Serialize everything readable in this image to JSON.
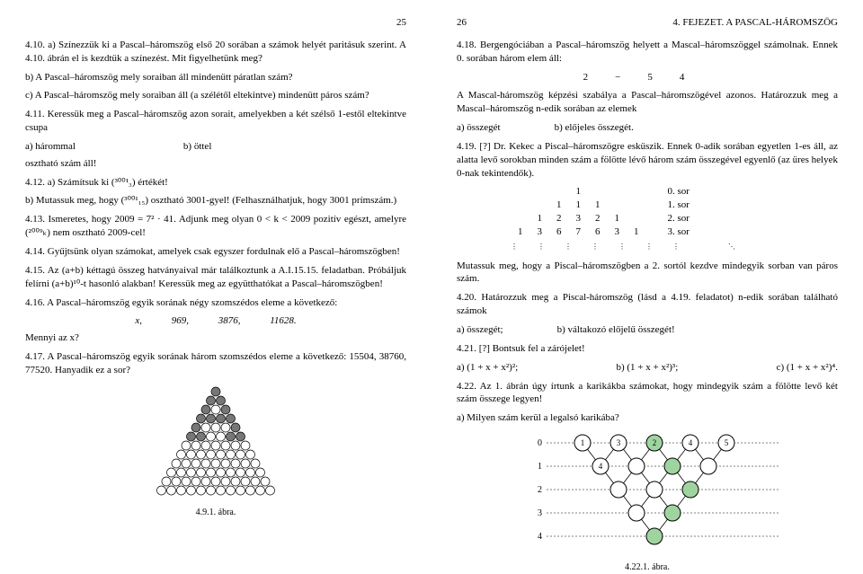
{
  "left": {
    "pageNumber": "25",
    "p410a": "4.10.  a) Színezzük ki a Pascal–háromszög első 20 sorában a számok helyét paritásuk szerint. A 4.10. ábrán el is kezdtük a színezést. Mit figyelhetünk meg?",
    "p410b": "b) A Pascal–háromszög mely soraiban áll mindenütt páratlan szám?",
    "p410c": "c) A Pascal–háromszög mely soraiban áll (a szélétől eltekintve) mindenütt páros szám?",
    "p411": "4.11.  Keressük meg a Pascal–háromszög azon sorait, amelyekben a két szélső 1-estől eltekintve csupa",
    "p411a": "a) hárommal",
    "p411b": "b) öttel",
    "p411tail": "osztható szám áll!",
    "p412a": "4.12.  a) Számítsuk ki (³⁰⁰¹₃) értékét!",
    "p412b": "b) Mutassuk meg, hogy (³⁰⁰¹₁₅) osztható 3001-gyel! (Felhasználhatjuk, hogy 3001 prímszám.)",
    "p413": "4.13.  Ismeretes, hogy 2009 = 7² · 41. Adjunk meg olyan 0 < k < 2009 pozitív egészt, amelyre (²⁰⁰⁹ₖ) nem osztható 2009-cel!",
    "p414": "4.14.  Gyűjtsünk olyan számokat, amelyek csak egyszer fordulnak elő a Pascal–háromszögben!",
    "p415": "4.15.  Az (a+b) kéttagú összeg hatványaival már találkoztunk a A.I.15.15. feladatban. Próbáljuk felírni (a+b)¹⁰-t hasonló alakban! Keressük meg az együtthatókat a Pascal–háromszögben!",
    "p416": "4.16.  A Pascal–háromszög egyik sorának négy szomszédos eleme a következő:",
    "p416nums": [
      "x,",
      "969,",
      "3876,",
      "11628."
    ],
    "p416q": "Mennyi az x?",
    "p417": "4.17.  A Pascal–háromszög egyik sorának három szomszédos eleme a következő: 15504, 38760, 77520. Hanyadik ez a sor?",
    "figcap": "4.9.1. ábra."
  },
  "right": {
    "pageNumber": "26",
    "chapter": "4. FEJEZET.  A PASCAL-HÁROMSZÖG",
    "p418a": "4.18.  Bergengóciában a Pascal–háromszög helyett a Mascal–háromszöggel számolnak. Ennek 0. sorában három elem áll:",
    "mascalnums": [
      "2",
      "−5",
      "4"
    ],
    "p418b": "A Mascal-háromszög képzési szabálya a Pascal–háromszögével azonos. Határozzuk meg a Mascal–háromszög n-edik sorában az elemek",
    "p418aa": "a) összegét",
    "p418bb": "b) előjeles összegét.",
    "p419": "4.19. [?]  Dr. Kekec a Piscal–háromszögre esküszik. Ennek 0-adik sorában egyetlen 1-es áll, az alatta levő sorokban minden szám a fölötte lévő három szám összegével egyenlő (az üres helyek 0-nak tekintendők).",
    "piscal": {
      "rows": [
        [
          "",
          "",
          "",
          "1",
          "",
          "",
          ""
        ],
        [
          "",
          "",
          "1",
          "1",
          "1",
          "",
          ""
        ],
        [
          "",
          "1",
          "2",
          "3",
          "2",
          "1",
          ""
        ],
        [
          "1",
          "3",
          "6",
          "7",
          "6",
          "3",
          "1"
        ]
      ],
      "labels": [
        "0. sor",
        "1. sor",
        "2. sor",
        "3. sor"
      ]
    },
    "p419b": "Mutassuk meg, hogy a Piscal–háromszögben a 2. sortól kezdve mindegyik sorban van páros szám.",
    "p420": "4.20.  Határozzuk meg a Piscal-háromszög (lásd a 4.19. feladatot) n-edik sorában található számok",
    "p420a": "a) összegét;",
    "p420b": "b) váltakozó előjelű összegét!",
    "p421": "4.21. [?]  Bontsuk fel a zárójelet!",
    "p421a": "a) (1 + x + x²)²;",
    "p421b": "b) (1 + x + x²)³;",
    "p421c": "c) (1 + x + x²)⁴.",
    "p422": "4.22.  Az 1. ábrán úgy írtunk a karikákba számokat, hogy mindegyik szám a fölötte levő két szám összege legyen!",
    "p422a": "a) Milyen szám kerül a legalsó karikába?",
    "figcap": "4.22.1. ábra.",
    "diag": {
      "rowLabels": [
        "0",
        "1",
        "2",
        "3",
        "4"
      ],
      "nodes": [
        [
          {
            "t": "1"
          },
          {
            "t": "3"
          },
          {
            "t": "2",
            "g": 1
          },
          {
            "t": "4"
          },
          {
            "t": "5"
          }
        ],
        [
          {
            "t": "4"
          },
          {
            "t": ""
          },
          {
            "t": "",
            "g": 1
          },
          {
            "t": ""
          }
        ],
        [
          {
            "t": ""
          },
          {
            "t": ""
          },
          {
            "t": "",
            "g": 1
          }
        ],
        [
          {
            "t": ""
          },
          {
            "t": "",
            "g": 1
          }
        ],
        [
          {
            "t": "",
            "g": 1
          }
        ]
      ]
    }
  }
}
